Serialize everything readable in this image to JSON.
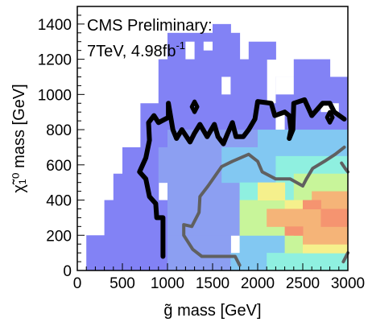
{
  "chart_data": {
    "type": "heatmap",
    "xlabel": "g̃ mass [GeV]",
    "ylabel": "χ̃₁⁰ mass [GeV]",
    "xlim": [
      0,
      3000
    ],
    "ylim": [
      0,
      1500
    ],
    "x_ticks": [
      0,
      500,
      1000,
      1500,
      2000,
      2500,
      3000
    ],
    "y_ticks": [
      0,
      200,
      400,
      600,
      800,
      1000,
      1200,
      1400
    ],
    "annotation": {
      "line1": "CMS Preliminary:",
      "line2_text": "7TeV, 4.98fb",
      "line2_sup": "-1"
    },
    "x_bin_width": 100,
    "y_bin_height": 50,
    "colors": [
      "#8282f5",
      "#8c9ff2",
      "#82c8f2",
      "#8ff0e0",
      "#c8f59a",
      "#f5f08c",
      "#f5b478",
      "#f59470"
    ],
    "cells": [
      {
        "x0": 100,
        "x1": 300,
        "y0": 0,
        "y1": 200,
        "level": 0
      },
      {
        "x0": 300,
        "x1": 1000,
        "y0": 0,
        "y1": 200,
        "level": 0
      },
      {
        "x0": 300,
        "x1": 1000,
        "y0": 200,
        "y1": 400,
        "level": 0
      },
      {
        "x0": 400,
        "x1": 900,
        "y0": 400,
        "y1": 550,
        "level": 0
      },
      {
        "x0": 500,
        "x1": 900,
        "y0": 550,
        "y1": 700,
        "level": 0
      },
      {
        "x0": 700,
        "x1": 1400,
        "y0": 700,
        "y1": 950,
        "level": 0
      },
      {
        "x0": 900,
        "x1": 2100,
        "y0": 950,
        "y1": 1200,
        "level": 0
      },
      {
        "x0": 1000,
        "x1": 1800,
        "y0": 1200,
        "y1": 1350,
        "level": 0
      },
      {
        "x0": 1500,
        "x1": 1700,
        "y0": 1350,
        "y1": 1400,
        "level": 0
      },
      {
        "x0": 1900,
        "x1": 2200,
        "y0": 1200,
        "y1": 1300,
        "level": 0
      },
      {
        "x0": 2200,
        "x1": 3000,
        "y0": 800,
        "y1": 1100,
        "level": 0
      },
      {
        "x0": 2400,
        "x1": 2800,
        "y0": 1100,
        "y1": 1200,
        "level": 0
      },
      {
        "x0": 1300,
        "x1": 2200,
        "y0": 700,
        "y1": 950,
        "level": 0
      },
      {
        "x0": 1000,
        "x1": 1700,
        "y0": 0,
        "y1": 200,
        "level": 1
      },
      {
        "x0": 1000,
        "x1": 1800,
        "y0": 200,
        "y1": 500,
        "level": 1
      },
      {
        "x0": 900,
        "x1": 1600,
        "y0": 500,
        "y1": 700,
        "level": 1
      },
      {
        "x0": 1000,
        "x1": 2000,
        "y0": 700,
        "y1": 800,
        "level": 1
      },
      {
        "x0": 1700,
        "x1": 2100,
        "y0": 0,
        "y1": 100,
        "level": 2
      },
      {
        "x0": 1800,
        "x1": 2300,
        "y0": 100,
        "y1": 300,
        "level": 2
      },
      {
        "x0": 1600,
        "x1": 2200,
        "y0": 500,
        "y1": 700,
        "level": 2
      },
      {
        "x0": 2000,
        "x1": 3000,
        "y0": 650,
        "y1": 800,
        "level": 2
      },
      {
        "x0": 1800,
        "x1": 2500,
        "y0": 300,
        "y1": 500,
        "level": 3
      },
      {
        "x0": 2100,
        "x1": 3000,
        "y0": 0,
        "y1": 100,
        "level": 3
      },
      {
        "x0": 2200,
        "x1": 3000,
        "y0": 500,
        "y1": 650,
        "level": 3
      },
      {
        "x0": 1800,
        "x1": 2400,
        "y0": 200,
        "y1": 400,
        "level": 4
      },
      {
        "x0": 2300,
        "x1": 3000,
        "y0": 100,
        "y1": 200,
        "level": 4
      },
      {
        "x0": 2400,
        "x1": 3000,
        "y0": 400,
        "y1": 550,
        "level": 4
      },
      {
        "x0": 2000,
        "x1": 2300,
        "y0": 400,
        "y1": 500,
        "level": 5
      },
      {
        "x0": 2300,
        "x1": 3000,
        "y0": 200,
        "y1": 400,
        "level": 5
      },
      {
        "x0": 2500,
        "x1": 3000,
        "y0": 100,
        "y1": 200,
        "level": 5
      },
      {
        "x0": 2400,
        "x1": 2800,
        "y0": 200,
        "y1": 350,
        "level": 6
      },
      {
        "x0": 2100,
        "x1": 2400,
        "y0": 250,
        "y1": 350,
        "level": 6
      },
      {
        "x0": 2600,
        "x1": 3000,
        "y0": 350,
        "y1": 450,
        "level": 6
      },
      {
        "x0": 2500,
        "x1": 3000,
        "y0": 150,
        "y1": 250,
        "level": 6
      },
      {
        "x0": 2700,
        "x1": 3000,
        "y0": 250,
        "y1": 350,
        "level": 7
      },
      {
        "x0": 2300,
        "x1": 2500,
        "y0": 200,
        "y1": 250,
        "level": 7
      },
      {
        "x0": 2500,
        "x1": 2700,
        "y0": 350,
        "y1": 400,
        "level": 7
      }
    ],
    "white_cells": [
      {
        "x0": 1200,
        "x1": 1300,
        "y0": 1200,
        "y1": 1300
      },
      {
        "x0": 1400,
        "x1": 1500,
        "y0": 1250,
        "y1": 1300
      },
      {
        "x0": 1600,
        "x1": 1700,
        "y0": 1000,
        "y1": 1100
      },
      {
        "x0": 2200,
        "x1": 2400,
        "y0": 1000,
        "y1": 1100
      },
      {
        "x0": 2700,
        "x1": 2900,
        "y0": 900,
        "y1": 950
      },
      {
        "x0": 2200,
        "x1": 2300,
        "y0": 800,
        "y1": 900
      }
    ],
    "contours": [
      {
        "name": "observed",
        "color": "#000000",
        "width": 6,
        "points": [
          [
            950,
            80
          ],
          [
            950,
            300
          ],
          [
            880,
            300
          ],
          [
            870,
            380
          ],
          [
            800,
            420
          ],
          [
            760,
            520
          ],
          [
            690,
            560
          ],
          [
            760,
            640
          ],
          [
            800,
            740
          ],
          [
            790,
            840
          ],
          [
            850,
            880
          ],
          [
            900,
            840
          ],
          [
            1010,
            870
          ],
          [
            1010,
            950
          ],
          [
            1060,
            800
          ],
          [
            1100,
            750
          ],
          [
            1160,
            800
          ],
          [
            1250,
            730
          ],
          [
            1300,
            780
          ],
          [
            1360,
            830
          ],
          [
            1440,
            760
          ],
          [
            1520,
            830
          ],
          [
            1560,
            760
          ],
          [
            1620,
            720
          ],
          [
            1660,
            770
          ],
          [
            1720,
            840
          ],
          [
            1760,
            760
          ],
          [
            1840,
            760
          ],
          [
            1900,
            800
          ],
          [
            1970,
            860
          ],
          [
            2000,
            960
          ],
          [
            2150,
            950
          ],
          [
            2190,
            880
          ],
          [
            2300,
            900
          ],
          [
            2350,
            880
          ],
          [
            2370,
            800
          ],
          [
            2350,
            750
          ],
          [
            2390,
            800
          ],
          [
            2400,
            950
          ],
          [
            2520,
            970
          ],
          [
            2600,
            880
          ],
          [
            2720,
            950
          ],
          [
            2800,
            950
          ],
          [
            2850,
            900
          ],
          [
            2960,
            860
          ]
        ]
      },
      {
        "name": "observed-island-1",
        "color": "#000000",
        "width": 5,
        "points": [
          [
            1270,
            930
          ],
          [
            1300,
            960
          ],
          [
            1330,
            930
          ],
          [
            1300,
            900
          ],
          [
            1270,
            930
          ]
        ]
      },
      {
        "name": "observed-island-2",
        "color": "#000000",
        "width": 5,
        "points": [
          [
            2770,
            870
          ],
          [
            2800,
            900
          ],
          [
            2830,
            870
          ],
          [
            2800,
            840
          ],
          [
            2770,
            870
          ]
        ]
      },
      {
        "name": "expected",
        "color": "#606060",
        "width": 4,
        "points": [
          [
            1800,
            30
          ],
          [
            1750,
            80
          ],
          [
            1380,
            80
          ],
          [
            1280,
            120
          ],
          [
            1180,
            200
          ],
          [
            1180,
            260
          ],
          [
            1270,
            250
          ],
          [
            1350,
            330
          ],
          [
            1360,
            420
          ],
          [
            1450,
            480
          ],
          [
            1600,
            590
          ],
          [
            1720,
            620
          ],
          [
            1900,
            660
          ],
          [
            2000,
            620
          ],
          [
            2050,
            560
          ],
          [
            2200,
            520
          ],
          [
            2360,
            520
          ],
          [
            2500,
            480
          ],
          [
            2540,
            520
          ],
          [
            2610,
            580
          ],
          [
            2740,
            620
          ],
          [
            2860,
            660
          ],
          [
            2960,
            700
          ]
        ]
      },
      {
        "name": "expected-edge-top",
        "color": "#606060",
        "width": 4,
        "points": [
          [
            2930,
            610
          ],
          [
            2970,
            580
          ],
          [
            3000,
            560
          ]
        ]
      },
      {
        "name": "expected-edge-bottom",
        "color": "#606060",
        "width": 4,
        "points": [
          [
            2950,
            50
          ],
          [
            2990,
            90
          ],
          [
            3000,
            100
          ]
        ]
      }
    ]
  }
}
